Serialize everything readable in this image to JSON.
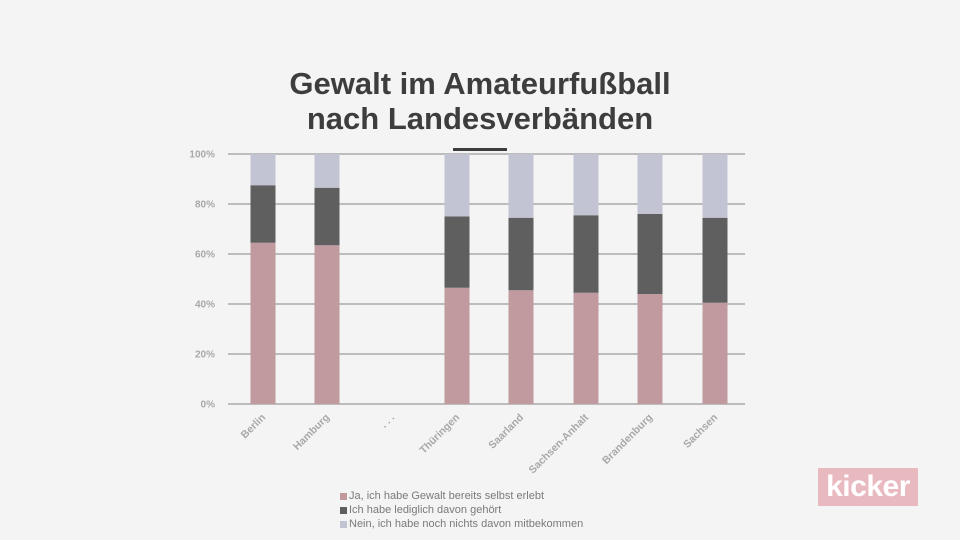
{
  "slide": {
    "title_line1": "Gewalt im Amateurfußball",
    "title_line2": "nach Landesverbänden"
  },
  "logo": {
    "text": "kicker"
  },
  "colors": {
    "ja": "#c19aa0",
    "gehoert": "#5f5f5f",
    "nein": "#c2c3d3",
    "grid": "#9a9a9a",
    "axis_text": "#a8a8a8"
  },
  "chart_data": {
    "type": "bar",
    "stacked": true,
    "title": "Gewalt im Amateurfußball nach Landesverbänden",
    "xlabel": "",
    "ylabel": "",
    "ylim": [
      0,
      100
    ],
    "y_ticks": [
      "0%",
      "20%",
      "40%",
      "60%",
      "80%",
      "100%"
    ],
    "categories": [
      "Berlin",
      "Hamburg",
      ". . .",
      "Thüringen",
      "Saarland",
      "Sachsen-Anhalt",
      "Brandenburg",
      "Sachsen"
    ],
    "series": [
      {
        "name": "Ja, ich habe Gewalt bereits selbst erlebt",
        "values": [
          64.5,
          63.5,
          null,
          46.5,
          45.5,
          44.5,
          44,
          40.5
        ]
      },
      {
        "name": "Ich habe lediglich davon gehört",
        "values": [
          23,
          23,
          null,
          28.5,
          29,
          31,
          32,
          34
        ]
      },
      {
        "name": "Nein, ich habe noch nichts davon mitbekommen",
        "values": [
          12.5,
          13.5,
          null,
          25,
          25.5,
          24.5,
          24,
          25.5
        ]
      }
    ],
    "legend_position": "bottom"
  }
}
